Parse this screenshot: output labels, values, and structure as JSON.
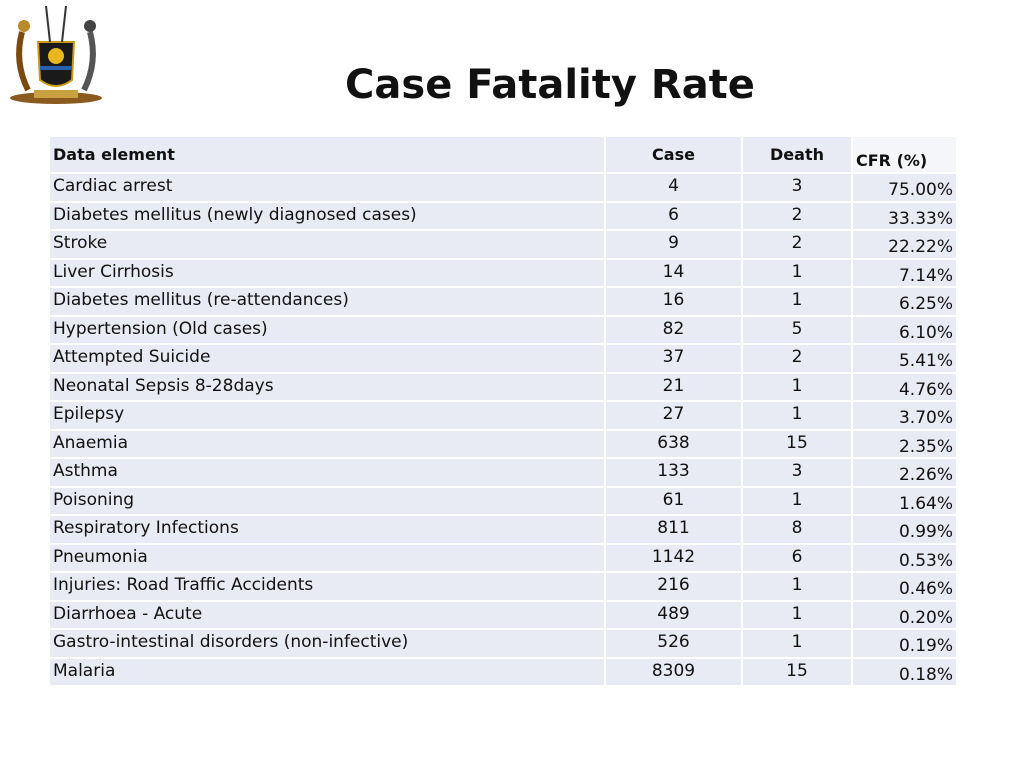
{
  "title": "Case Fatality Rate",
  "table": {
    "headers": [
      "Data element",
      "Case",
      "Death",
      "CFR (%)"
    ],
    "rows": [
      [
        "Cardiac arrest",
        "4",
        "3",
        "75.00%"
      ],
      [
        "Diabetes mellitus (newly diagnosed cases)",
        "6",
        "2",
        "33.33%"
      ],
      [
        "Stroke",
        "9",
        "2",
        "22.22%"
      ],
      [
        "Liver Cirrhosis",
        "14",
        "1",
        "7.14%"
      ],
      [
        "Diabetes mellitus (re-attendances)",
        "16",
        "1",
        "6.25%"
      ],
      [
        "Hypertension (Old cases)",
        "82",
        "5",
        "6.10%"
      ],
      [
        "Attempted Suicide",
        "37",
        "2",
        "5.41%"
      ],
      [
        "Neonatal Sepsis 8-28days",
        "21",
        "1",
        "4.76%"
      ],
      [
        "Epilepsy",
        "27",
        "1",
        "3.70%"
      ],
      [
        "Anaemia",
        "638",
        "15",
        "2.35%"
      ],
      [
        "Asthma",
        "133",
        "3",
        "2.26%"
      ],
      [
        "Poisoning",
        "61",
        "1",
        "1.64%"
      ],
      [
        "Respiratory Infections",
        "811",
        "8",
        "0.99%"
      ],
      [
        "Pneumonia",
        "1142",
        "6",
        "0.53%"
      ],
      [
        "Injuries: Road Traffic Accidents",
        "216",
        "1",
        "0.46%"
      ],
      [
        "Diarrhoea - Acute",
        "489",
        "1",
        "0.20%"
      ],
      [
        "Gastro-intestinal disorders (non-infective)",
        "526",
        "1",
        "0.19%"
      ],
      [
        "Malaria",
        "8309",
        "15",
        "0.18%"
      ]
    ]
  }
}
